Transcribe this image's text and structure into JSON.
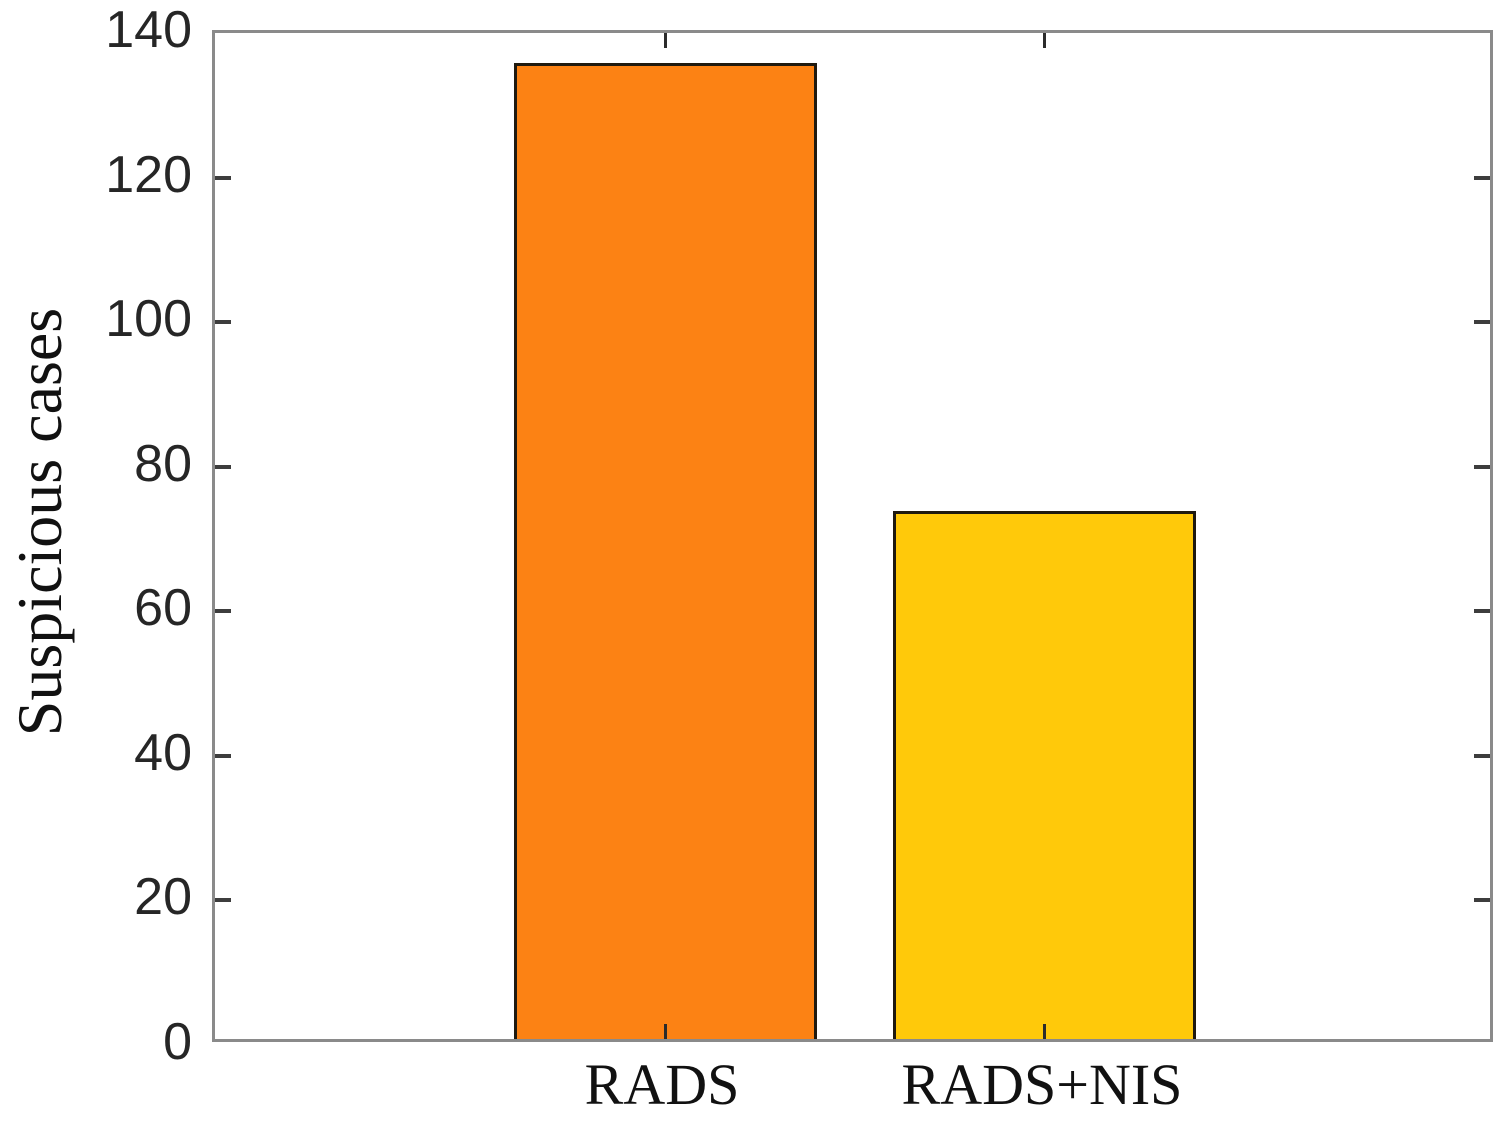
{
  "chart_data": {
    "type": "bar",
    "title": "",
    "xlabel": "",
    "ylabel": "Suspicious cases",
    "categories": [
      "RADS",
      "RADS+NIS"
    ],
    "values": [
      135,
      73
    ],
    "bar_colors": [
      "#FC8214",
      "#FFC90A"
    ],
    "bar_edge_color": "#1F1A10",
    "ylim": [
      0,
      140
    ],
    "ytick_step": 20,
    "ytick_labels": [
      "0",
      "20",
      "40",
      "60",
      "80",
      "100",
      "120",
      "140"
    ],
    "grid": false,
    "legend": null,
    "axis_box_color": "#8A8A8A",
    "tick_mark_color": "#3D3D3D",
    "tick_label_color": "#262626",
    "axis_title_color": "#111111"
  }
}
